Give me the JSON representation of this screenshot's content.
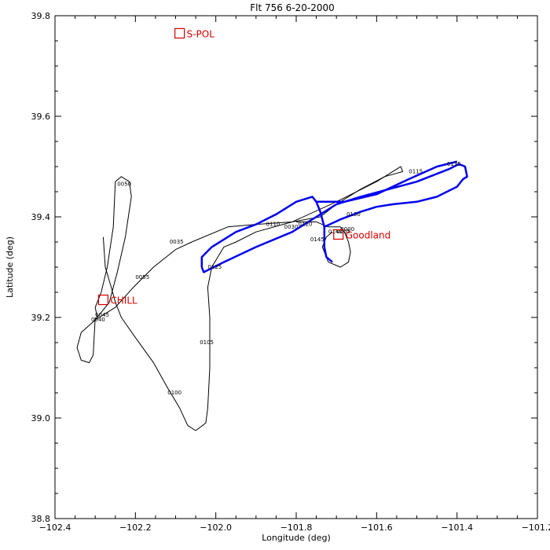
{
  "chart_data": {
    "type": "line",
    "title": "Flt 756  6-20-2000",
    "xlabel": "Longitude (deg)",
    "ylabel": "Latitude (deg)",
    "xlim": [
      -102.4,
      -101.2
    ],
    "ylim": [
      38.8,
      39.8
    ],
    "x_ticks": [
      -102.4,
      -102.2,
      -102.0,
      -101.8,
      -101.6,
      -101.4,
      -101.2
    ],
    "x_tick_labels": [
      "−102.4",
      "−102.2",
      "−102.0",
      "−101.8",
      "−101.6",
      "−101.4",
      "−101.2"
    ],
    "y_ticks": [
      38.8,
      39.0,
      39.2,
      39.4,
      39.6,
      39.8
    ],
    "y_tick_labels": [
      "38.8",
      "39.0",
      "39.2",
      "39.4",
      "39.6",
      "39.8"
    ],
    "grid": false,
    "colors": {
      "track": "#000000",
      "highlight": "#0000ee",
      "sites": "#d40000"
    },
    "series": [
      {
        "color": "#000000",
        "points": [
          [
            -102.295,
            39.2
          ],
          [
            -102.3,
            39.22
          ],
          [
            -102.285,
            39.25
          ],
          [
            -102.27,
            39.3
          ],
          [
            -102.255,
            39.38
          ],
          [
            -102.25,
            39.47
          ],
          [
            -102.235,
            39.48
          ],
          [
            -102.215,
            39.47
          ],
          [
            -102.21,
            39.44
          ],
          [
            -102.225,
            39.36
          ],
          [
            -102.245,
            39.29
          ],
          [
            -102.265,
            39.23
          ],
          [
            -102.3,
            39.195
          ],
          [
            -102.335,
            39.17
          ],
          [
            -102.345,
            39.14
          ],
          [
            -102.335,
            39.115
          ],
          [
            -102.315,
            39.11
          ],
          [
            -102.305,
            39.125
          ],
          [
            -102.3,
            39.2
          ]
        ]
      },
      {
        "color": "#000000",
        "points": [
          [
            -102.3,
            39.195
          ],
          [
            -102.25,
            39.22
          ],
          [
            -102.205,
            39.26
          ],
          [
            -102.155,
            39.3
          ],
          [
            -102.1,
            39.335
          ],
          [
            -102.06,
            39.35
          ],
          [
            -101.97,
            39.38
          ],
          [
            -101.9,
            39.385
          ],
          [
            -101.81,
            39.39
          ],
          [
            -101.74,
            39.4
          ],
          [
            -101.7,
            39.425
          ],
          [
            -101.64,
            39.455
          ],
          [
            -101.58,
            39.48
          ],
          [
            -101.535,
            39.49
          ]
        ]
      },
      {
        "color": "#000000",
        "points": [
          [
            -101.535,
            39.49
          ],
          [
            -101.54,
            39.5
          ],
          [
            -101.6,
            39.47
          ],
          [
            -101.7,
            39.43
          ],
          [
            -101.81,
            39.39
          ],
          [
            -101.9,
            39.37
          ],
          [
            -101.95,
            39.35
          ],
          [
            -101.98,
            39.34
          ],
          [
            -102.01,
            39.3
          ],
          [
            -102.02,
            39.26
          ],
          [
            -102.015,
            39.2
          ],
          [
            -102.015,
            39.1
          ],
          [
            -102.02,
            39.02
          ],
          [
            -102.025,
            38.99
          ],
          [
            -102.05,
            38.975
          ],
          [
            -102.07,
            38.985
          ],
          [
            -102.09,
            39.02
          ],
          [
            -102.12,
            39.06
          ],
          [
            -102.155,
            39.11
          ],
          [
            -102.2,
            39.16
          ],
          [
            -102.235,
            39.2
          ],
          [
            -102.25,
            39.23
          ],
          [
            -102.26,
            39.26
          ],
          [
            -102.275,
            39.3
          ],
          [
            -102.28,
            39.36
          ]
        ]
      },
      {
        "color": "#000000",
        "points": [
          [
            -101.8,
            39.39
          ],
          [
            -101.75,
            39.39
          ],
          [
            -101.72,
            39.38
          ],
          [
            -101.69,
            39.38
          ],
          [
            -101.68,
            39.37
          ],
          [
            -101.67,
            39.35
          ],
          [
            -101.665,
            39.33
          ],
          [
            -101.67,
            39.31
          ],
          [
            -101.69,
            39.3
          ],
          [
            -101.72,
            39.31
          ],
          [
            -101.735,
            39.34
          ],
          [
            -101.725,
            39.36
          ],
          [
            -101.71,
            39.37
          ]
        ]
      },
      {
        "color": "#0000ee",
        "points": [
          [
            -102.035,
            39.3
          ],
          [
            -102.03,
            39.29
          ],
          [
            -101.98,
            39.31
          ],
          [
            -101.9,
            39.34
          ],
          [
            -101.81,
            39.37
          ],
          [
            -101.75,
            39.4
          ],
          [
            -101.7,
            39.425
          ],
          [
            -101.64,
            39.44
          ],
          [
            -101.57,
            39.455
          ],
          [
            -101.5,
            39.47
          ],
          [
            -101.42,
            39.495
          ],
          [
            -101.395,
            39.505
          ],
          [
            -101.38,
            39.5
          ],
          [
            -101.375,
            39.48
          ],
          [
            -101.385,
            39.475
          ],
          [
            -101.4,
            39.46
          ],
          [
            -101.45,
            39.44
          ],
          [
            -101.5,
            39.43
          ],
          [
            -101.56,
            39.425
          ],
          [
            -101.6,
            39.42
          ],
          [
            -101.64,
            39.41
          ],
          [
            -101.69,
            39.395
          ],
          [
            -101.73,
            39.38
          ],
          [
            -101.73,
            39.34
          ],
          [
            -101.725,
            39.32
          ],
          [
            -101.71,
            39.31
          ]
        ]
      },
      {
        "color": "#0000ee",
        "points": [
          [
            -101.73,
            39.38
          ],
          [
            -101.74,
            39.41
          ],
          [
            -101.75,
            39.43
          ],
          [
            -101.76,
            39.44
          ],
          [
            -101.8,
            39.43
          ],
          [
            -101.85,
            39.405
          ],
          [
            -101.9,
            39.385
          ],
          [
            -101.95,
            39.37
          ],
          [
            -102.01,
            39.34
          ],
          [
            -102.035,
            39.32
          ],
          [
            -102.035,
            39.3
          ]
        ]
      },
      {
        "color": "#0000ee",
        "points": [
          [
            -101.75,
            39.43
          ],
          [
            -101.68,
            39.43
          ],
          [
            -101.6,
            39.445
          ],
          [
            -101.52,
            39.475
          ],
          [
            -101.45,
            39.5
          ],
          [
            -101.4,
            39.51
          ]
        ]
      }
    ],
    "time_labels": [
      {
        "text": "0035",
        "x": -102.115,
        "y": 39.35
      },
      {
        "text": "0040",
        "x": -102.31,
        "y": 39.195
      },
      {
        "text": "0045",
        "x": -102.3,
        "y": 39.205
      },
      {
        "text": "0050",
        "x": -102.245,
        "y": 39.465
      },
      {
        "text": "0055",
        "x": -102.2,
        "y": 39.28
      },
      {
        "text": "0100",
        "x": -102.12,
        "y": 39.05
      },
      {
        "text": "0105",
        "x": -102.04,
        "y": 39.15
      },
      {
        "text": "0110",
        "x": -101.875,
        "y": 39.385
      },
      {
        "text": "0115",
        "x": -101.52,
        "y": 39.49
      },
      {
        "text": "0120",
        "x": -101.795,
        "y": 39.385
      },
      {
        "text": "0125",
        "x": -102.02,
        "y": 39.3
      },
      {
        "text": "0130",
        "x": -101.675,
        "y": 39.405
      },
      {
        "text": "0135",
        "x": -101.425,
        "y": 39.505
      },
      {
        "text": "0140",
        "x": -101.72,
        "y": 39.37
      },
      {
        "text": "0145",
        "x": -101.765,
        "y": 39.355
      },
      {
        "text": "0030",
        "x": -101.83,
        "y": 39.38
      },
      {
        "text": "0005",
        "x": -101.7,
        "y": 39.37
      },
      {
        "text": "0000",
        "x": -101.69,
        "y": 39.375
      }
    ],
    "sites": [
      {
        "name": "S-POL",
        "x": -102.09,
        "y": 39.765
      },
      {
        "name": "CHILL",
        "x": -102.28,
        "y": 39.235
      },
      {
        "name": "Goodland",
        "x": -101.695,
        "y": 39.365
      }
    ]
  }
}
